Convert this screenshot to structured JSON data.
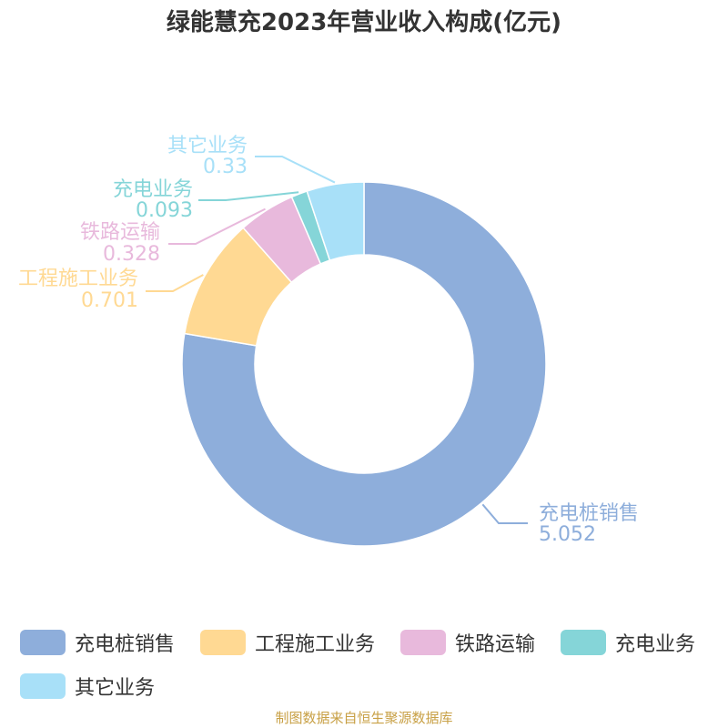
{
  "source_note": "制图数据来自恒生聚源数据库",
  "chart_data": {
    "type": "pie",
    "variant": "donut",
    "title": "绿能慧充2023年营业收入构成(亿元)",
    "slices": [
      {
        "name": "充电桩销售",
        "value": 5.052,
        "label": "5.052",
        "color": "#8eaedb"
      },
      {
        "name": "工程施工业务",
        "value": 0.701,
        "label": "0.701",
        "color": "#ffd993"
      },
      {
        "name": "铁路运输",
        "value": 0.328,
        "label": "0.328",
        "color": "#e8b9dc"
      },
      {
        "name": "充电业务",
        "value": 0.093,
        "label": "0.093",
        "color": "#85d5d8"
      },
      {
        "name": "其它业务",
        "value": 0.33,
        "label": "0.33",
        "color": "#a8e0f8"
      }
    ],
    "legend_position": "bottom"
  }
}
